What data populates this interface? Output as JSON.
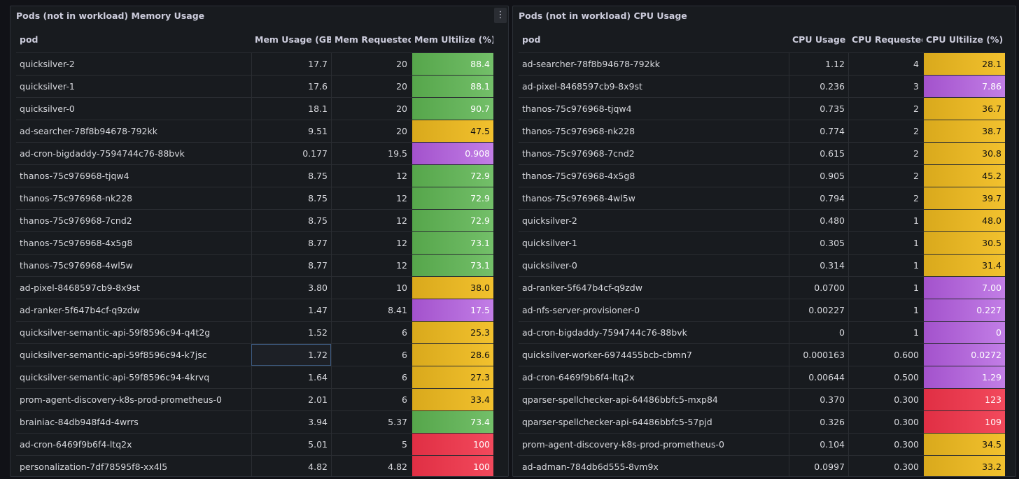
{
  "mem_panel": {
    "title": "Pods (not in workload) Memory Usage",
    "menu_icon": "⋮",
    "columns": [
      "pod",
      "Mem Usage (GB",
      "Mem Requested (G",
      "Mem Ultilize (%)"
    ],
    "rows": [
      {
        "pod": "quicksilver-2",
        "usage": "17.7",
        "req": "20",
        "util": "88.4",
        "color": "green"
      },
      {
        "pod": "quicksilver-1",
        "usage": "17.6",
        "req": "20",
        "util": "88.1",
        "color": "green"
      },
      {
        "pod": "quicksilver-0",
        "usage": "18.1",
        "req": "20",
        "util": "90.7",
        "color": "green"
      },
      {
        "pod": "ad-searcher-78f8b94678-792kk",
        "usage": "9.51",
        "req": "20",
        "util": "47.5",
        "color": "yellow"
      },
      {
        "pod": "ad-cron-bigdaddy-7594744c76-88bvk",
        "usage": "0.177",
        "req": "19.5",
        "util": "0.908",
        "color": "purple"
      },
      {
        "pod": "thanos-75c976968-tjqw4",
        "usage": "8.75",
        "req": "12",
        "util": "72.9",
        "color": "green"
      },
      {
        "pod": "thanos-75c976968-nk228",
        "usage": "8.75",
        "req": "12",
        "util": "72.9",
        "color": "green"
      },
      {
        "pod": "thanos-75c976968-7cnd2",
        "usage": "8.75",
        "req": "12",
        "util": "72.9",
        "color": "green"
      },
      {
        "pod": "thanos-75c976968-4x5g8",
        "usage": "8.77",
        "req": "12",
        "util": "73.1",
        "color": "green"
      },
      {
        "pod": "thanos-75c976968-4wl5w",
        "usage": "8.77",
        "req": "12",
        "util": "73.1",
        "color": "green"
      },
      {
        "pod": "ad-pixel-8468597cb9-8x9st",
        "usage": "3.80",
        "req": "10",
        "util": "38.0",
        "color": "yellow"
      },
      {
        "pod": "ad-ranker-5f647b4cf-q9zdw",
        "usage": "1.47",
        "req": "8.41",
        "util": "17.5",
        "color": "purple"
      },
      {
        "pod": "quicksilver-semantic-api-59f8596c94-q4t2g",
        "usage": "1.52",
        "req": "6",
        "util": "25.3",
        "color": "yellow"
      },
      {
        "pod": "quicksilver-semantic-api-59f8596c94-k7jsc",
        "usage": "1.72",
        "req": "6",
        "util": "28.6",
        "color": "yellow",
        "highlight": true
      },
      {
        "pod": "quicksilver-semantic-api-59f8596c94-4krvq",
        "usage": "1.64",
        "req": "6",
        "util": "27.3",
        "color": "yellow"
      },
      {
        "pod": "prom-agent-discovery-k8s-prod-prometheus-0",
        "usage": "2.01",
        "req": "6",
        "util": "33.4",
        "color": "yellow"
      },
      {
        "pod": "brainiac-84db948f4d-4wrrs",
        "usage": "3.94",
        "req": "5.37",
        "util": "73.4",
        "color": "green"
      },
      {
        "pod": "ad-cron-6469f9b6f4-ltq2x",
        "usage": "5.01",
        "req": "5",
        "util": "100",
        "color": "red"
      },
      {
        "pod": "personalization-7df78595f8-xx4l5",
        "usage": "4.82",
        "req": "4.82",
        "util": "100",
        "color": "red"
      }
    ]
  },
  "cpu_panel": {
    "title": "Pods (not in workload) CPU Usage",
    "columns": [
      "pod",
      "CPU Usage",
      "CPU Requested",
      "CPU Ultilize (%)"
    ],
    "rows": [
      {
        "pod": "ad-searcher-78f8b94678-792kk",
        "usage": "1.12",
        "req": "4",
        "util": "28.1",
        "color": "yellow"
      },
      {
        "pod": "ad-pixel-8468597cb9-8x9st",
        "usage": "0.236",
        "req": "3",
        "util": "7.86",
        "color": "purple"
      },
      {
        "pod": "thanos-75c976968-tjqw4",
        "usage": "0.735",
        "req": "2",
        "util": "36.7",
        "color": "yellow"
      },
      {
        "pod": "thanos-75c976968-nk228",
        "usage": "0.774",
        "req": "2",
        "util": "38.7",
        "color": "yellow"
      },
      {
        "pod": "thanos-75c976968-7cnd2",
        "usage": "0.615",
        "req": "2",
        "util": "30.8",
        "color": "yellow"
      },
      {
        "pod": "thanos-75c976968-4x5g8",
        "usage": "0.905",
        "req": "2",
        "util": "45.2",
        "color": "yellow"
      },
      {
        "pod": "thanos-75c976968-4wl5w",
        "usage": "0.794",
        "req": "2",
        "util": "39.7",
        "color": "yellow"
      },
      {
        "pod": "quicksilver-2",
        "usage": "0.480",
        "req": "1",
        "util": "48.0",
        "color": "yellow"
      },
      {
        "pod": "quicksilver-1",
        "usage": "0.305",
        "req": "1",
        "util": "30.5",
        "color": "yellow"
      },
      {
        "pod": "quicksilver-0",
        "usage": "0.314",
        "req": "1",
        "util": "31.4",
        "color": "yellow"
      },
      {
        "pod": "ad-ranker-5f647b4cf-q9zdw",
        "usage": "0.0700",
        "req": "1",
        "util": "7.00",
        "color": "purple"
      },
      {
        "pod": "ad-nfs-server-provisioner-0",
        "usage": "0.00227",
        "req": "1",
        "util": "0.227",
        "color": "purple"
      },
      {
        "pod": "ad-cron-bigdaddy-7594744c76-88bvk",
        "usage": "0",
        "req": "1",
        "util": "0",
        "color": "purple"
      },
      {
        "pod": "quicksilver-worker-6974455bcb-cbmn7",
        "usage": "0.000163",
        "req": "0.600",
        "util": "0.0272",
        "color": "purple"
      },
      {
        "pod": "ad-cron-6469f9b6f4-ltq2x",
        "usage": "0.00644",
        "req": "0.500",
        "util": "1.29",
        "color": "purple"
      },
      {
        "pod": "qparser-spellchecker-api-64486bbfc5-mxp84",
        "usage": "0.370",
        "req": "0.300",
        "util": "123",
        "color": "red"
      },
      {
        "pod": "qparser-spellchecker-api-64486bbfc5-57pjd",
        "usage": "0.326",
        "req": "0.300",
        "util": "109",
        "color": "red"
      },
      {
        "pod": "prom-agent-discovery-k8s-prod-prometheus-0",
        "usage": "0.104",
        "req": "0.300",
        "util": "34.5",
        "color": "yellow"
      },
      {
        "pod": "ad-adman-784db6d555-8vm9x",
        "usage": "0.0997",
        "req": "0.300",
        "util": "33.2",
        "color": "yellow"
      }
    ]
  }
}
